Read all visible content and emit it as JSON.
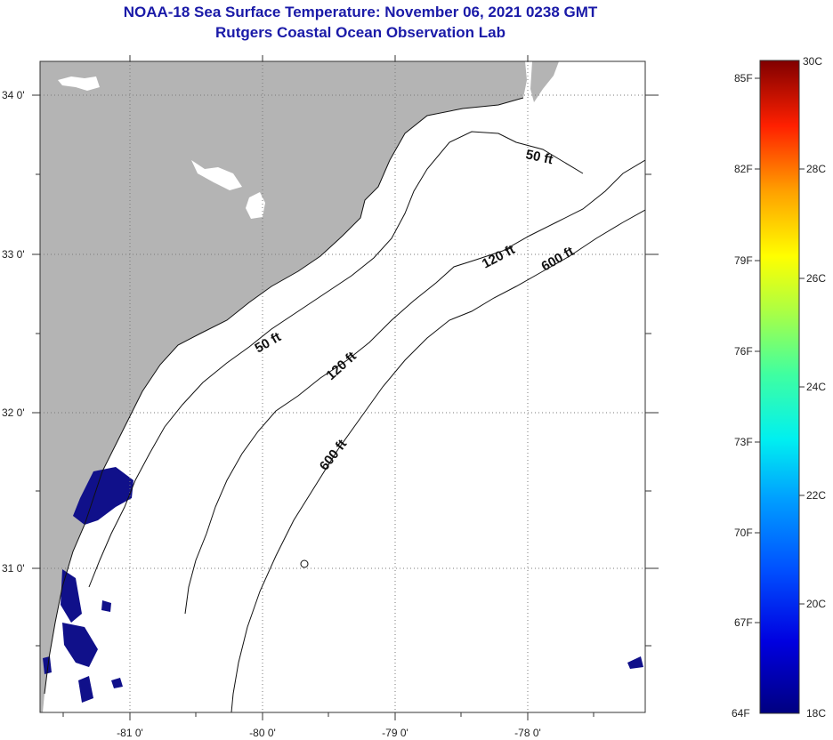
{
  "title": {
    "line1": "NOAA-18 Sea Surface Temperature:  November 06, 2021 0238 GMT",
    "line2": "Rutgers Coastal Ocean Observation Lab"
  },
  "map": {
    "lon_labels": [
      "-81 0'",
      "-80 0'",
      "-79 0'",
      "-78 0'"
    ],
    "lat_labels": [
      "34 0'",
      "33 0'",
      "32 0'",
      "31 0'"
    ],
    "contour_labels": [
      "50 ft",
      "50 ft",
      "120 ft",
      "120 ft",
      "600 ft",
      "600 ft"
    ],
    "colors": {
      "land": "#b4b4b4",
      "cold_sst": "#10108a",
      "contour": "#111111"
    }
  },
  "colorbar": {
    "f_labels": [
      "85F",
      "82F",
      "79F",
      "76F",
      "73F",
      "70F",
      "67F",
      "64F"
    ],
    "c_labels": [
      "30C",
      "28C",
      "26C",
      "24C",
      "22C",
      "20C",
      "18C"
    ],
    "range_c": [
      18,
      30
    ]
  }
}
